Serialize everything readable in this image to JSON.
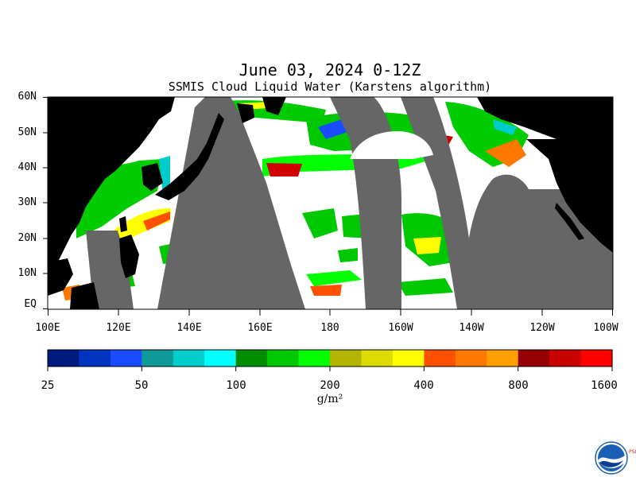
{
  "header": {
    "title": "June 03, 2024 0-12Z",
    "subtitle": "SSMIS Cloud Liquid Water (Karstens algorithm)"
  },
  "map": {
    "lat_labels": [
      "60N",
      "50N",
      "40N",
      "30N",
      "20N",
      "10N",
      "EQ"
    ],
    "lon_labels": [
      "100E",
      "120E",
      "140E",
      "160E",
      "180",
      "160W",
      "140W",
      "120W",
      "100W"
    ],
    "land_color": "#000000",
    "no_data_color": "#666666",
    "ocean_clear_color": "#ffffff"
  },
  "colorbar": {
    "tick_labels": [
      "25",
      "50",
      "100",
      "200",
      "400",
      "800",
      "1600"
    ],
    "units": "g/m²",
    "colors": [
      "#001a80",
      "#0033c0",
      "#1a4cff",
      "#0f9999",
      "#00cccc",
      "#00ffff",
      "#008c00",
      "#00c800",
      "#00ff00",
      "#b4b400",
      "#dcdc00",
      "#ffff00",
      "#ff5000",
      "#ff7800",
      "#ffa000",
      "#960000",
      "#c80000",
      "#ff0000"
    ]
  },
  "logo": {
    "name": "NOAA",
    "side_text": "PSL"
  }
}
